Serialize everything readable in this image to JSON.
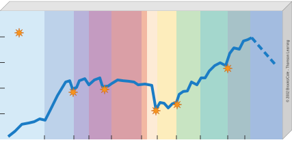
{
  "chart_data": {
    "type": "line",
    "xlim": [
      0,
      413
    ],
    "ylim": [
      0,
      5
    ],
    "xticks": [
      65,
      108,
      130,
      163,
      207,
      230,
      258,
      293,
      333,
      358
    ],
    "yticks": [
      1,
      2,
      3,
      4
    ],
    "credit": "© 2002 Brooks/Cole - Thomson Learning",
    "bands": [
      {
        "start": 0,
        "end": 65,
        "color": "#d5eaf7"
      },
      {
        "start": 65,
        "end": 108,
        "color": "#bdd2ea"
      },
      {
        "start": 108,
        "end": 130,
        "color": "#b8b3da"
      },
      {
        "start": 130,
        "end": 163,
        "color": "#c49bc1"
      },
      {
        "start": 163,
        "end": 207,
        "color": "#da9fa6"
      },
      {
        "start": 207,
        "end": 215,
        "color": "#f2b8a2"
      },
      {
        "start": 215,
        "end": 230,
        "color": "#fdebd6"
      },
      {
        "start": 230,
        "end": 258,
        "color": "#fdedbc"
      },
      {
        "start": 258,
        "end": 293,
        "color": "#c8e4c2"
      },
      {
        "start": 293,
        "end": 333,
        "color": "#a4d7cd"
      },
      {
        "start": 333,
        "end": 366,
        "color": "#a7c2c8"
      },
      {
        "start": 366,
        "end": 413,
        "color": "#a3bce0"
      }
    ],
    "series": [
      {
        "color": "#1b7cc5",
        "dashed": false,
        "x": [
          12,
          22,
          32,
          42,
          50,
          58,
          66,
          74,
          84,
          96,
          102,
          106,
          112,
          116,
          124,
          130,
          138,
          146,
          150,
          158,
          164,
          172,
          180,
          188,
          196,
          202,
          212,
          222,
          228,
          234,
          240,
          246,
          252,
          258,
          262,
          268,
          274,
          280,
          288,
          294,
          300,
          306,
          314,
          322,
          330,
          336,
          342,
          350,
          356,
          362,
          368
        ],
        "values": [
          0.11,
          0.32,
          0.59,
          0.64,
          0.69,
          0.8,
          0.75,
          1.17,
          1.71,
          2.24,
          2.29,
          1.97,
          2.03,
          2.29,
          2.37,
          2.13,
          2.32,
          2.4,
          2.05,
          2.08,
          2.19,
          2.32,
          2.29,
          2.27,
          2.24,
          2.13,
          2.16,
          2.11,
          1.17,
          1.44,
          1.41,
          1.23,
          1.39,
          1.44,
          1.76,
          1.87,
          1.89,
          2.24,
          2.13,
          2.4,
          2.4,
          2.67,
          2.88,
          2.99,
          2.88,
          3.36,
          3.57,
          3.52,
          3.84,
          3.89,
          3.97
        ]
      },
      {
        "color": "#1b7cc5",
        "dashed": true,
        "x": [
          368,
          405
        ],
        "values": [
          3.97,
          2.85
        ]
      },
      {
        "color": "#f7941d",
        "marker": "star",
        "x": [
          28,
          107,
          153,
          228,
          259,
          333
        ],
        "values": [
          4.16,
          1.84,
          1.95,
          1.12,
          1.36,
          2.77
        ]
      }
    ]
  }
}
